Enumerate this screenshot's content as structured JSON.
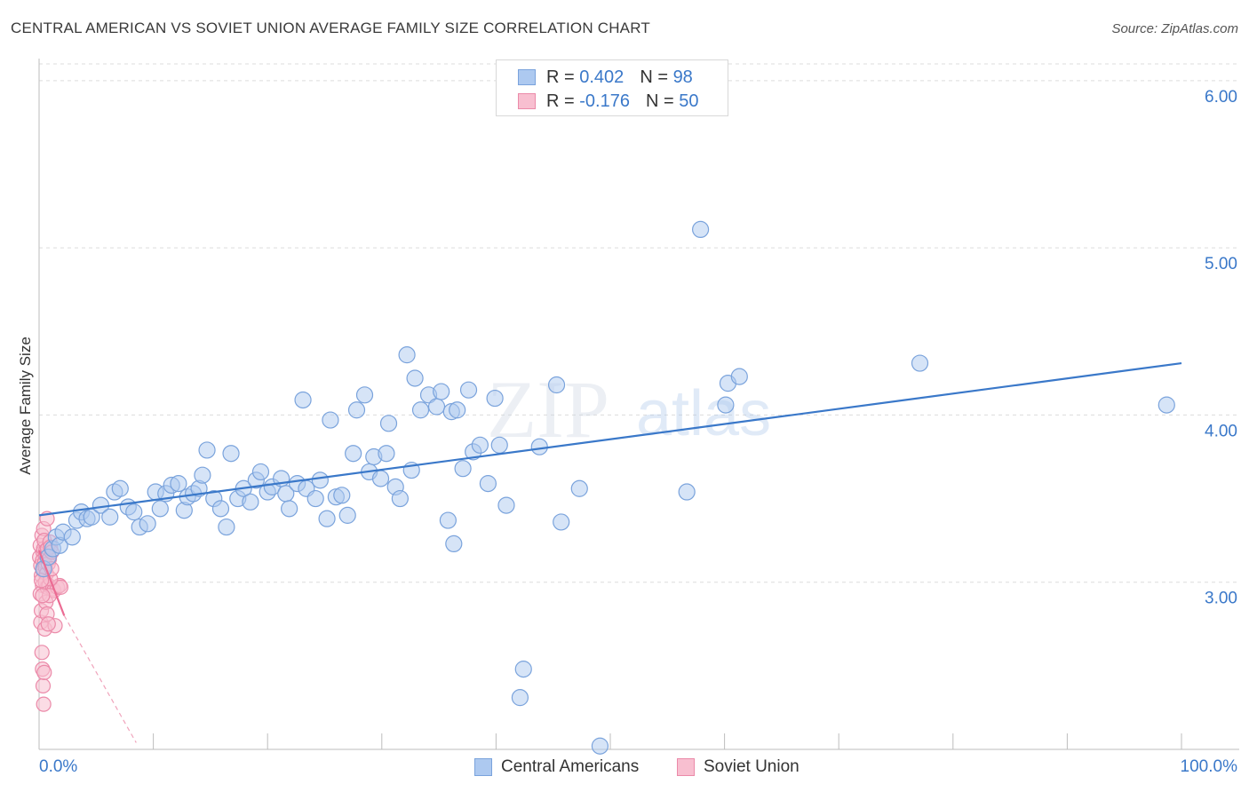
{
  "title": "CENTRAL AMERICAN VS SOVIET UNION AVERAGE FAMILY SIZE CORRELATION CHART",
  "source": "Source: ZipAtlas.com",
  "watermark": {
    "zip": "ZIP",
    "atlas": "atlas"
  },
  "legend": {
    "r_label": "R =",
    "n_label": "N =",
    "series": [
      {
        "name": "Central Americans",
        "r": "0.402",
        "n": "98",
        "fill": "#adc9f0",
        "stroke": "#7aa3dc"
      },
      {
        "name": "Soviet Union",
        "r": "-0.176",
        "n": "50",
        "fill": "#f8bfd0",
        "stroke": "#eb8aa9"
      }
    ]
  },
  "chart_data": {
    "type": "scatter",
    "title": "CENTRAL AMERICAN VS SOVIET UNION AVERAGE FAMILY SIZE CORRELATION CHART",
    "xlabel": "",
    "ylabel": "Average Family Size",
    "xlim": [
      0,
      100
    ],
    "ylim": [
      2.0,
      6.1
    ],
    "x_tick_labels": [
      "0.0%",
      "100.0%"
    ],
    "y_ticks": [
      3.0,
      4.0,
      5.0,
      6.0
    ],
    "y_tick_labels": [
      "3.00",
      "4.00",
      "5.00",
      "6.00"
    ],
    "grid": true,
    "series": [
      {
        "name": "Central Americans",
        "color": "#3a78c9",
        "trend": {
          "x": [
            0,
            100
          ],
          "y": [
            3.4,
            4.31
          ]
        },
        "points": [
          [
            0.4,
            3.08
          ],
          [
            0.8,
            3.15
          ],
          [
            1.2,
            3.2
          ],
          [
            1.5,
            3.27
          ],
          [
            1.8,
            3.22
          ],
          [
            2.1,
            3.3
          ],
          [
            2.9,
            3.27
          ],
          [
            3.3,
            3.37
          ],
          [
            3.7,
            3.42
          ],
          [
            4.2,
            3.38
          ],
          [
            4.6,
            3.39
          ],
          [
            5.4,
            3.46
          ],
          [
            6.2,
            3.39
          ],
          [
            6.6,
            3.54
          ],
          [
            7.1,
            3.56
          ],
          [
            7.8,
            3.45
          ],
          [
            8.3,
            3.42
          ],
          [
            8.8,
            3.33
          ],
          [
            9.5,
            3.35
          ],
          [
            10.2,
            3.54
          ],
          [
            10.6,
            3.44
          ],
          [
            11.1,
            3.53
          ],
          [
            11.6,
            3.58
          ],
          [
            12.2,
            3.59
          ],
          [
            12.7,
            3.43
          ],
          [
            13,
            3.51
          ],
          [
            13.5,
            3.53
          ],
          [
            14.0,
            3.56
          ],
          [
            14.3,
            3.64
          ],
          [
            14.7,
            3.79
          ],
          [
            15.3,
            3.5
          ],
          [
            15.9,
            3.44
          ],
          [
            16.4,
            3.33
          ],
          [
            16.8,
            3.77
          ],
          [
            17.4,
            3.5
          ],
          [
            17.9,
            3.56
          ],
          [
            18.5,
            3.48
          ],
          [
            19.0,
            3.61
          ],
          [
            19.4,
            3.66
          ],
          [
            20.0,
            3.54
          ],
          [
            20.4,
            3.57
          ],
          [
            21.2,
            3.62
          ],
          [
            21.6,
            3.53
          ],
          [
            21.9,
            3.44
          ],
          [
            22.6,
            3.59
          ],
          [
            23.1,
            4.09
          ],
          [
            23.4,
            3.56
          ],
          [
            24.2,
            3.5
          ],
          [
            24.6,
            3.61
          ],
          [
            25.2,
            3.38
          ],
          [
            25.5,
            3.97
          ],
          [
            26.0,
            3.51
          ],
          [
            26.5,
            3.52
          ],
          [
            27.0,
            3.4
          ],
          [
            27.5,
            3.77
          ],
          [
            27.8,
            4.03
          ],
          [
            28.5,
            4.12
          ],
          [
            28.9,
            3.66
          ],
          [
            29.3,
            3.75
          ],
          [
            29.9,
            3.62
          ],
          [
            30.4,
            3.77
          ],
          [
            30.6,
            3.95
          ],
          [
            31.2,
            3.57
          ],
          [
            31.6,
            3.5
          ],
          [
            32.2,
            4.36
          ],
          [
            32.6,
            3.67
          ],
          [
            32.9,
            4.22
          ],
          [
            33.4,
            4.03
          ],
          [
            34.1,
            4.12
          ],
          [
            34.8,
            4.05
          ],
          [
            35.2,
            4.14
          ],
          [
            35.8,
            3.37
          ],
          [
            36.1,
            4.02
          ],
          [
            36.3,
            3.23
          ],
          [
            36.6,
            4.03
          ],
          [
            37.1,
            3.68
          ],
          [
            37.6,
            4.15
          ],
          [
            38.0,
            3.78
          ],
          [
            38.6,
            3.82
          ],
          [
            39.3,
            3.59
          ],
          [
            39.9,
            4.1
          ],
          [
            40.3,
            3.82
          ],
          [
            40.9,
            3.46
          ],
          [
            42.1,
            2.31
          ],
          [
            42.4,
            2.48
          ],
          [
            43.8,
            3.81
          ],
          [
            45.3,
            4.18
          ],
          [
            45.7,
            3.36
          ],
          [
            47.3,
            3.56
          ],
          [
            49.1,
            2.02
          ],
          [
            56.7,
            3.54
          ],
          [
            57.9,
            5.11
          ],
          [
            60.1,
            4.06
          ],
          [
            60.3,
            4.19
          ],
          [
            61.3,
            4.23
          ],
          [
            77.1,
            4.31
          ],
          [
            98.7,
            4.06
          ]
        ]
      },
      {
        "name": "Soviet Union",
        "color": "#eb6b93",
        "trend": {
          "x": [
            0,
            2.2
          ],
          "y": [
            3.19,
            2.8
          ]
        },
        "trend_extension": {
          "x": [
            2.2,
            8.5
          ],
          "y": [
            2.8,
            2.04
          ]
        },
        "points": [
          [
            0.05,
            3.15
          ],
          [
            0.1,
            3.22
          ],
          [
            0.15,
            3.1
          ],
          [
            0.2,
            3.04
          ],
          [
            0.25,
            3.28
          ],
          [
            0.3,
            2.98
          ],
          [
            0.35,
            3.18
          ],
          [
            0.4,
            3.32
          ],
          [
            0.1,
            2.93
          ],
          [
            0.15,
            2.76
          ],
          [
            0.2,
            2.83
          ],
          [
            0.3,
            3.13
          ],
          [
            0.35,
            3.07
          ],
          [
            0.4,
            3.2
          ],
          [
            0.45,
            3.25
          ],
          [
            0.5,
            3.12
          ],
          [
            0.55,
            3.09
          ],
          [
            0.6,
            3.16
          ],
          [
            0.65,
            3.05
          ],
          [
            0.7,
            2.97
          ],
          [
            0.25,
            2.58
          ],
          [
            0.3,
            2.48
          ],
          [
            0.35,
            2.38
          ],
          [
            0.4,
            2.27
          ],
          [
            0.45,
            2.46
          ],
          [
            0.5,
            2.72
          ],
          [
            0.55,
            3.0
          ],
          [
            0.6,
            3.19
          ],
          [
            0.7,
            3.38
          ],
          [
            0.75,
            3.2
          ],
          [
            0.8,
            3.11
          ],
          [
            0.85,
            2.98
          ],
          [
            0.9,
            3.14
          ],
          [
            0.95,
            3.24
          ],
          [
            1.0,
            3.21
          ],
          [
            1.1,
            3.18
          ],
          [
            1.2,
            2.96
          ],
          [
            1.3,
            2.95
          ],
          [
            1.4,
            2.74
          ],
          [
            1.6,
            2.97
          ],
          [
            1.8,
            2.98
          ],
          [
            1.9,
            2.97
          ],
          [
            0.6,
            2.88
          ],
          [
            0.7,
            2.81
          ],
          [
            0.8,
            2.75
          ],
          [
            0.9,
            2.92
          ],
          [
            1.0,
            3.02
          ],
          [
            1.1,
            3.08
          ],
          [
            0.2,
            3.01
          ],
          [
            0.3,
            2.92
          ]
        ]
      }
    ]
  }
}
